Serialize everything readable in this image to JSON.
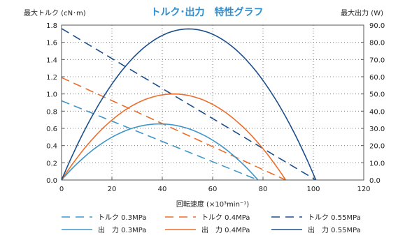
{
  "chart_data": {
    "type": "line",
    "title": "トルク･出力　特性グラフ",
    "ylabel_left": "最大トルク (cN･m)",
    "ylabel_right": "最大出力 (W)",
    "xlabel": "回転速度 (×10³min⁻¹)",
    "xlim": [
      0,
      120
    ],
    "ylim_left": [
      0,
      1.8
    ],
    "ylim_right": [
      0,
      90
    ],
    "x_ticks": [
      "0",
      "20",
      "40",
      "60",
      "80",
      "100",
      "120"
    ],
    "y_left_ticks": [
      "0.0",
      "0.2",
      "0.4",
      "0.6",
      "0.8",
      "1.0",
      "1.2",
      "1.4",
      "1.6",
      "1.8"
    ],
    "y_right_ticks": [
      "0.0",
      "10.0",
      "20.0",
      "30.0",
      "40.0",
      "50.0",
      "60.0",
      "70.0",
      "80.0",
      "90.0"
    ],
    "grid": true,
    "colors": {
      "light_blue": "#3e95c8",
      "orange": "#ec6d2a",
      "dark_blue": "#1b4f8c"
    },
    "series": [
      {
        "name": "トルク 0.3MPa",
        "kind": "torque",
        "axis": "left",
        "style": "dashed",
        "color": "#3e95c8",
        "x": [
          0,
          78
        ],
        "y": [
          0.92,
          0.0
        ]
      },
      {
        "name": "トルク 0.4MPa",
        "kind": "torque",
        "axis": "left",
        "style": "dashed",
        "color": "#ec6d2a",
        "x": [
          0,
          89
        ],
        "y": [
          1.19,
          0.0
        ]
      },
      {
        "name": "トルク 0.55MPa",
        "kind": "torque",
        "axis": "left",
        "style": "dashed",
        "color": "#1b4f8c",
        "x": [
          0,
          101
        ],
        "y": [
          1.76,
          0.0
        ]
      },
      {
        "name": "出　力 0.3MPa",
        "kind": "power",
        "axis": "right",
        "style": "solid",
        "color": "#3e95c8",
        "x_max": 78,
        "peak": 32.6
      },
      {
        "name": "出　力 0.4MPa",
        "kind": "power",
        "axis": "right",
        "style": "solid",
        "color": "#ec6d2a",
        "x_max": 89,
        "peak": 50.0
      },
      {
        "name": "出　力 0.55MPa",
        "kind": "power",
        "axis": "right",
        "style": "solid",
        "color": "#1b4f8c",
        "x_max": 101,
        "peak": 87.8
      }
    ]
  }
}
